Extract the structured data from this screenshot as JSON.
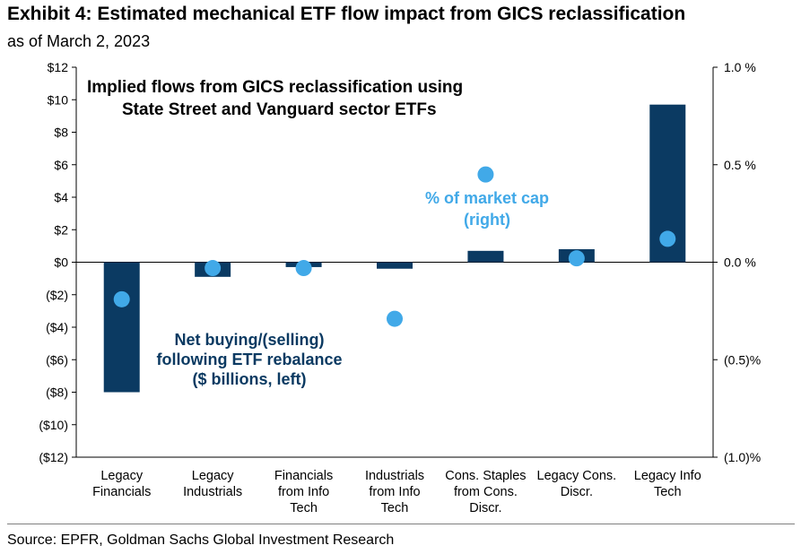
{
  "header": {
    "title": "Exhibit 4: Estimated mechanical ETF flow impact from GICS reclassification",
    "subtitle": "as of March 2, 2023"
  },
  "footer": {
    "source": "Source: EPFR, Goldman Sachs Global Investment Research"
  },
  "chart_data": {
    "type": "bar",
    "categories": [
      [
        "Legacy",
        "Financials"
      ],
      [
        "Legacy",
        "Industrials"
      ],
      [
        "Financials",
        "from Info",
        "Tech"
      ],
      [
        "Industrials",
        "from Info",
        "Tech"
      ],
      [
        "Cons. Staples",
        "from Cons.",
        "Discr."
      ],
      [
        "Legacy Cons.",
        "Discr."
      ],
      [
        "Legacy Info",
        "Tech"
      ]
    ],
    "series": [
      {
        "name": "Net buying/(selling) following ETF rebalance ($ billions, left)",
        "kind": "bar",
        "axis": "left",
        "color": "#0b3a62",
        "values": [
          -8.0,
          -0.9,
          -0.3,
          -0.4,
          0.7,
          0.8,
          9.7
        ]
      },
      {
        "name": "% of market cap (right)",
        "kind": "scatter",
        "axis": "right",
        "color": "#41a9e8",
        "values": [
          -0.19,
          -0.03,
          -0.03,
          -0.29,
          0.45,
          0.02,
          0.12
        ]
      }
    ],
    "annotations": {
      "box_title": [
        "Implied flows from GICS reclassification using",
        "State Street and Vanguard sector ETFs"
      ],
      "bars_label": [
        "Net buying/(selling)",
        "following ETF rebalance",
        "($ billions, left)"
      ],
      "dots_label": [
        "% of market cap",
        "(right)"
      ]
    },
    "y_left": {
      "ylim": [
        -12,
        12
      ],
      "ticks": [
        12,
        10,
        8,
        6,
        4,
        2,
        0,
        -2,
        -4,
        -6,
        -8,
        -10,
        -12
      ],
      "tick_labels": [
        "$12",
        "$10",
        "$8",
        "$6",
        "$4",
        "$2",
        "$0",
        "($2)",
        "($4)",
        "($6)",
        "($8)",
        "($10)",
        "($12)"
      ]
    },
    "y_right": {
      "ylim": [
        -1.0,
        1.0
      ],
      "ticks": [
        1.0,
        0.5,
        0.0,
        -0.5,
        -1.0
      ],
      "tick_labels": [
        "1.0 %",
        "0.5 %",
        "0.0 %",
        "(0.5)%",
        "(1.0)%"
      ]
    },
    "grid": false,
    "legend": "none"
  }
}
